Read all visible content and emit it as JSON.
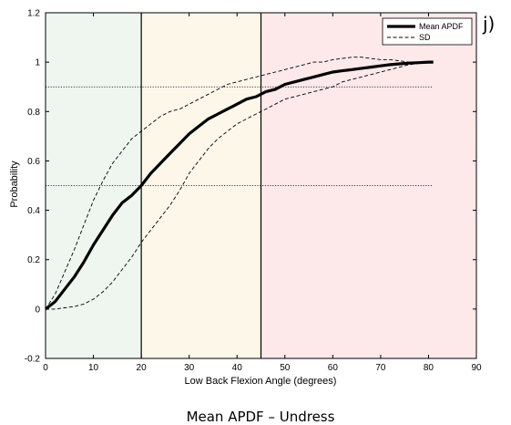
{
  "panel_label": "j)",
  "caption": "Mean APDF – Undress",
  "colors": {
    "zone_green": "#eef6ef",
    "zone_yellow": "#fdf7ea",
    "zone_red": "#fde8ea",
    "mean_line": "#000000",
    "sd_line": "#000000",
    "reference_line": "#000000"
  },
  "chart_data": {
    "type": "line",
    "title": "",
    "xlabel": "Low Back Flexion Angle (degrees)",
    "ylabel": "Probability",
    "xlim": [
      0,
      90
    ],
    "ylim": [
      -0.2,
      1.2
    ],
    "xticks": [
      0,
      10,
      20,
      30,
      40,
      50,
      60,
      70,
      80,
      90
    ],
    "yticks": [
      -0.2,
      0,
      0.2,
      0.4,
      0.6,
      0.8,
      1,
      1.2
    ],
    "xtick_labels": [
      "0",
      "10",
      "20",
      "30",
      "40",
      "50",
      "60",
      "70",
      "80",
      "90"
    ],
    "ytick_labels": [
      "-0.2",
      "0",
      "0.2",
      "0.4",
      "0.6",
      "0.8",
      "1",
      "1.2"
    ],
    "grid": false,
    "legend_position": "top-right",
    "shaded_zones": [
      {
        "from": 0,
        "to": 20,
        "color": "zone_green"
      },
      {
        "from": 20,
        "to": 45,
        "color": "zone_yellow"
      },
      {
        "from": 45,
        "to": 90,
        "color": "zone_red"
      }
    ],
    "vertical_lines": [
      20,
      45
    ],
    "horizontal_reference_lines": [
      {
        "y": 0.9,
        "x_from": 0,
        "x_to": 81
      },
      {
        "y": 0.5,
        "x_from": 0,
        "x_to": 81
      }
    ],
    "series": [
      {
        "name": "Mean APDF",
        "style": "thick-solid",
        "x": [
          0,
          2,
          4,
          6,
          8,
          10,
          12,
          14,
          16,
          18,
          20,
          22,
          24,
          26,
          28,
          30,
          32,
          34,
          36,
          38,
          40,
          42,
          44,
          46,
          48,
          50,
          52,
          54,
          56,
          58,
          60,
          62,
          64,
          66,
          68,
          70,
          72,
          74,
          76,
          78,
          80,
          81
        ],
        "y": [
          0.0,
          0.03,
          0.08,
          0.13,
          0.19,
          0.26,
          0.32,
          0.38,
          0.43,
          0.46,
          0.5,
          0.55,
          0.59,
          0.63,
          0.67,
          0.71,
          0.74,
          0.77,
          0.79,
          0.81,
          0.83,
          0.85,
          0.86,
          0.88,
          0.89,
          0.91,
          0.92,
          0.93,
          0.94,
          0.95,
          0.96,
          0.965,
          0.97,
          0.975,
          0.98,
          0.985,
          0.99,
          0.993,
          0.996,
          0.998,
          1.0,
          1.0
        ]
      },
      {
        "name": "SD",
        "style": "dashed",
        "x": [
          0,
          2,
          4,
          6,
          8,
          10,
          12,
          14,
          16,
          18,
          20,
          22,
          24,
          26,
          28,
          30,
          32,
          34,
          36,
          38,
          40,
          42,
          44,
          46,
          48,
          50,
          52,
          54,
          56,
          58,
          60,
          62,
          64,
          66,
          68,
          70,
          72,
          74,
          76,
          78,
          80
        ],
        "y": [
          0.0,
          0.06,
          0.15,
          0.24,
          0.34,
          0.44,
          0.52,
          0.59,
          0.64,
          0.69,
          0.72,
          0.75,
          0.78,
          0.8,
          0.81,
          0.83,
          0.85,
          0.87,
          0.89,
          0.91,
          0.92,
          0.93,
          0.94,
          0.95,
          0.96,
          0.97,
          0.98,
          0.99,
          1.0,
          1.0,
          1.01,
          1.015,
          1.02,
          1.02,
          1.015,
          1.01,
          1.01,
          1.005,
          1.0,
          1.0,
          1.0
        ]
      },
      {
        "name": "",
        "style": "dashed",
        "x": [
          0,
          2,
          4,
          6,
          8,
          10,
          12,
          14,
          16,
          18,
          20,
          22,
          24,
          26,
          28,
          30,
          32,
          34,
          36,
          38,
          40,
          42,
          44,
          46,
          48,
          50,
          52,
          54,
          56,
          58,
          60,
          62,
          64,
          66,
          68,
          70,
          72,
          74,
          76,
          78,
          80
        ],
        "y": [
          0.0,
          0.0,
          0.005,
          0.01,
          0.02,
          0.04,
          0.07,
          0.11,
          0.16,
          0.21,
          0.27,
          0.32,
          0.37,
          0.42,
          0.48,
          0.55,
          0.6,
          0.65,
          0.69,
          0.72,
          0.75,
          0.77,
          0.79,
          0.81,
          0.83,
          0.85,
          0.86,
          0.87,
          0.88,
          0.89,
          0.9,
          0.92,
          0.93,
          0.94,
          0.95,
          0.96,
          0.97,
          0.98,
          0.99,
          0.995,
          1.0
        ]
      }
    ]
  }
}
